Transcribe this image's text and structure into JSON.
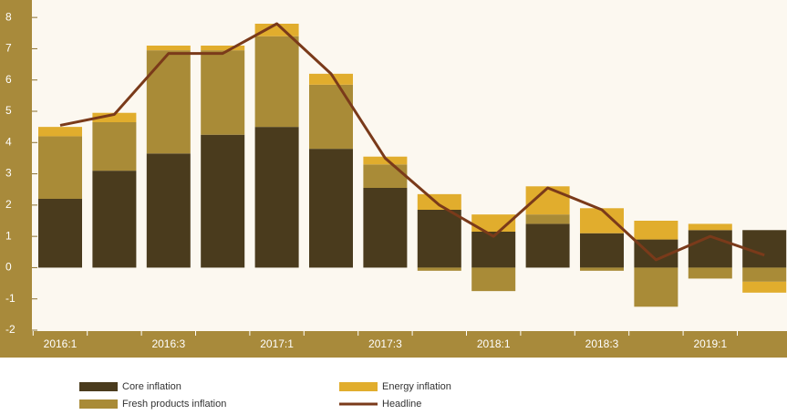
{
  "chart_data": {
    "type": "bar",
    "categories": [
      "2016:1",
      null,
      "2016:3",
      null,
      "2017:1",
      null,
      "2017:3",
      null,
      "2018:1",
      null,
      "2018:3",
      null,
      "2019:1",
      null
    ],
    "series": [
      {
        "name": "Core inflation",
        "color": "#4a3b1d",
        "values": [
          2.2,
          3.1,
          3.65,
          4.25,
          4.5,
          3.8,
          2.55,
          1.85,
          1.15,
          1.4,
          1.1,
          0.9,
          1.2,
          1.2
        ]
      },
      {
        "name": "Fresh products inflation",
        "color": "#a98b37",
        "values": [
          2.0,
          1.55,
          3.3,
          2.7,
          2.9,
          2.05,
          0.75,
          -0.1,
          -0.75,
          0.3,
          -0.1,
          -1.25,
          -0.35,
          -0.45
        ]
      },
      {
        "name": "Energy inflation",
        "color": "#e1ad2d",
        "values": [
          0.3,
          0.3,
          0.15,
          0.15,
          0.4,
          0.35,
          0.25,
          0.5,
          0.55,
          0.9,
          0.8,
          0.6,
          0.2,
          -0.35
        ]
      },
      {
        "name": "Headline",
        "type": "line",
        "color": "#7a3a1a",
        "values": [
          4.55,
          4.9,
          6.85,
          6.85,
          7.8,
          6.2,
          3.5,
          2.0,
          1.0,
          2.55,
          1.85,
          0.25,
          1.0,
          0.4
        ]
      }
    ],
    "ylim": [
      -2,
      8.5
    ],
    "yticks": [
      -2,
      -1,
      0,
      1,
      2,
      3,
      4,
      5,
      6,
      7,
      8
    ],
    "grid": false,
    "stacked": true,
    "legend": "bottom"
  }
}
